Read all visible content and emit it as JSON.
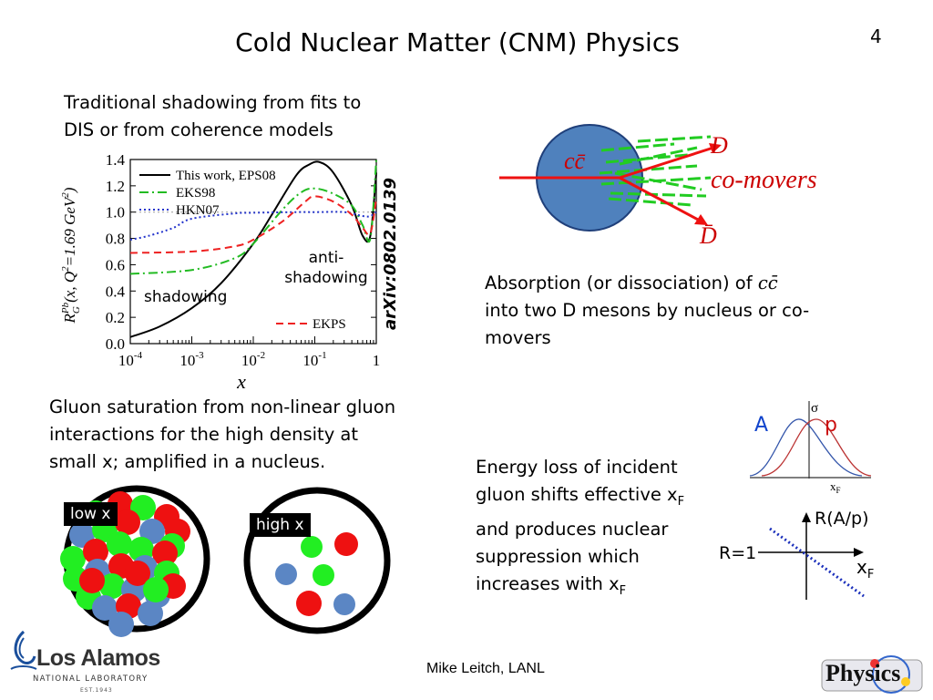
{
  "header": {
    "title": "Cold Nuclear Matter (CNM) Physics",
    "page_number": "4"
  },
  "shadowing": {
    "heading_line1": "Traditional shadowing from fits to",
    "heading_line2": "DIS or from coherence models",
    "arxiv": "arXiv:0802.0139",
    "label_shadowing": "shadowing",
    "label_anti_line1": "anti-",
    "label_anti_line2": "shadowing"
  },
  "chart_data": {
    "type": "line",
    "xlabel": "x",
    "ylabel": "R_G^Pb(x, Q^2=1.69 GeV^2)",
    "xscale": "log",
    "xlim": [
      0.0001,
      1
    ],
    "ylim": [
      0.0,
      1.4
    ],
    "x_tick_labels": [
      "10^-4",
      "10^-3",
      "10^-2",
      "10^-1",
      "1"
    ],
    "y_tick_labels": [
      "0.0",
      "0.2",
      "0.4",
      "0.6",
      "0.8",
      "1.0",
      "1.2",
      "1.4"
    ],
    "legend_position": "top-left",
    "reference_line": 1.0,
    "series": [
      {
        "name": "This work, EPS08",
        "color": "#000000",
        "style": "solid",
        "x": [
          0.0001,
          0.0003,
          0.001,
          0.003,
          0.01,
          0.02,
          0.05,
          0.08,
          0.12,
          0.2,
          0.4,
          0.6,
          0.8,
          1.0
        ],
        "y": [
          0.05,
          0.13,
          0.27,
          0.46,
          0.76,
          0.98,
          1.28,
          1.36,
          1.38,
          1.3,
          1.05,
          0.82,
          0.82,
          1.3
        ]
      },
      {
        "name": "EKS98",
        "color": "#22bb22",
        "style": "dash-dot",
        "x": [
          0.0001,
          0.001,
          0.005,
          0.01,
          0.03,
          0.06,
          0.1,
          0.2,
          0.4,
          0.6,
          0.8,
          1.0
        ],
        "y": [
          0.53,
          0.56,
          0.65,
          0.76,
          1.02,
          1.15,
          1.18,
          1.14,
          1.05,
          0.9,
          0.8,
          1.4
        ]
      },
      {
        "name": "HKN07",
        "color": "#2233cc",
        "style": "dotted",
        "x": [
          0.0001,
          0.0002,
          0.0005,
          0.001,
          0.005,
          0.01,
          0.05,
          0.1,
          0.3,
          0.6,
          0.8,
          1.0
        ],
        "y": [
          0.79,
          0.82,
          0.88,
          0.95,
          0.99,
          0.995,
          1.0,
          1.0,
          1.0,
          0.97,
          0.97,
          1.0
        ]
      },
      {
        "name": "EKPS",
        "color": "#ee2222",
        "style": "dashed",
        "x": [
          0.0001,
          0.001,
          0.005,
          0.01,
          0.03,
          0.07,
          0.1,
          0.2,
          0.4,
          0.6,
          0.8,
          1.0
        ],
        "y": [
          0.69,
          0.7,
          0.74,
          0.79,
          0.93,
          1.08,
          1.12,
          1.08,
          0.98,
          0.88,
          0.84,
          1.1
        ]
      }
    ]
  },
  "absorption": {
    "label_pair": "cc̄",
    "label_D": "D",
    "label_Dbar": "D̄",
    "label_comovers": "co-movers",
    "caption_line1_a": "Absorption (or dissociation) of",
    "caption_pair": "cc̄",
    "caption_line2": "into two D mesons by nucleus or co-",
    "caption_line3": "movers"
  },
  "saturation": {
    "line1": "Gluon saturation from non-linear gluon",
    "line2": "interactions for the high density at",
    "line3": "small x; amplified in a nucleus.",
    "tag_low": "low x",
    "tag_high": "high x"
  },
  "energy_loss": {
    "line1": "Energy loss of incident",
    "line2_a": "gluon shifts effective x",
    "line2_sub": "F",
    "line3": "and produces nuclear",
    "line4": "suppression which",
    "line5_a": "increases with x",
    "line5_sub": "F",
    "sigma_label": "σ",
    "xf_label": "x",
    "xf_sub": "F",
    "label_A": "A",
    "label_p": "p",
    "ratio_label": "R(A/p)",
    "r1_label": "R=1",
    "ratio_x_label": "x",
    "ratio_x_sub": "F",
    "colors": {
      "A": "#1144cc",
      "p": "#cc1111",
      "ratio_line": "#1a2fbb"
    }
  },
  "footer": {
    "author": "Mike Leitch, LANL",
    "lab_name": "Los Alamos",
    "lab_sub": "NATIONAL LABORATORY",
    "lab_est": "EST.1943",
    "physics_logo": "Physics"
  }
}
